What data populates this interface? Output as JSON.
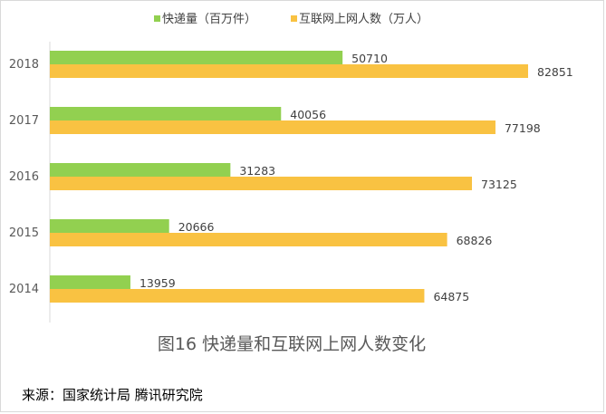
{
  "chart_data": {
    "type": "bar",
    "orientation": "horizontal",
    "categories": [
      "2018",
      "2017",
      "2016",
      "2015",
      "2014"
    ],
    "series": [
      {
        "name": "快递量（百万件）",
        "color": "#92d050",
        "values": [
          50710,
          40056,
          31283,
          20666,
          13959
        ]
      },
      {
        "name": "互联网上网人数（万人）",
        "color": "#f9c242",
        "values": [
          82851,
          77198,
          73125,
          68826,
          64875
        ]
      }
    ],
    "title": "",
    "xlim": [
      0,
      90000
    ],
    "grid": false,
    "legend_position": "top"
  },
  "caption": "图16  快递量和互联网上网人数变化",
  "source": "来源：国家统计局 腾讯研究院"
}
